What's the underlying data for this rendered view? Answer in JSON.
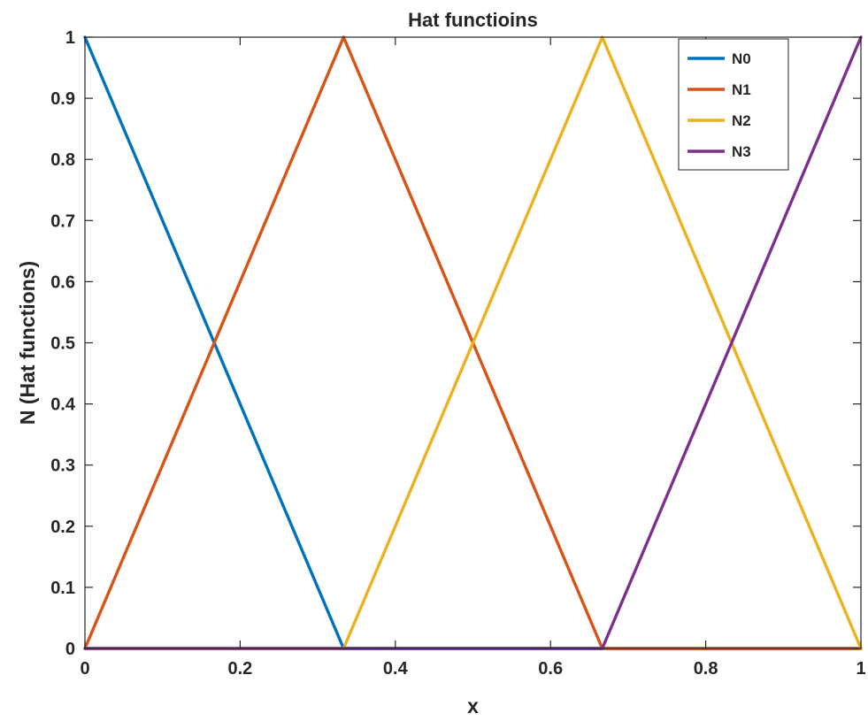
{
  "chart_data": {
    "type": "line",
    "title": "Hat functioins",
    "xlabel": "x",
    "ylabel": "N (Hat functions)",
    "xlim": [
      0,
      1
    ],
    "ylim": [
      0,
      1
    ],
    "xticks": [
      "0",
      "0.2",
      "0.4",
      "0.6",
      "0.8",
      "1"
    ],
    "xtick_values": [
      0,
      0.2,
      0.4,
      0.6,
      0.8,
      1
    ],
    "yticks": [
      "0",
      "0.1",
      "0.2",
      "0.3",
      "0.4",
      "0.5",
      "0.6",
      "0.7",
      "0.8",
      "0.9",
      "1"
    ],
    "ytick_values": [
      0,
      0.1,
      0.2,
      0.3,
      0.4,
      0.5,
      0.6,
      0.7,
      0.8,
      0.9,
      1
    ],
    "grid": false,
    "legend_position": "top-right",
    "series": [
      {
        "name": "N0",
        "color": "#0072BD",
        "x": [
          0,
          0.3333,
          1
        ],
        "y": [
          1,
          0,
          0
        ]
      },
      {
        "name": "N1",
        "color": "#D95319",
        "x": [
          0,
          0.3333,
          0.6667,
          1
        ],
        "y": [
          0,
          1,
          0,
          0
        ]
      },
      {
        "name": "N2",
        "color": "#EDB120",
        "x": [
          0,
          0.3333,
          0.6667,
          1
        ],
        "y": [
          0,
          0,
          1,
          0
        ]
      },
      {
        "name": "N3",
        "color": "#7E2F8E",
        "x": [
          0,
          0.6667,
          1
        ],
        "y": [
          0,
          0,
          1
        ]
      }
    ]
  }
}
